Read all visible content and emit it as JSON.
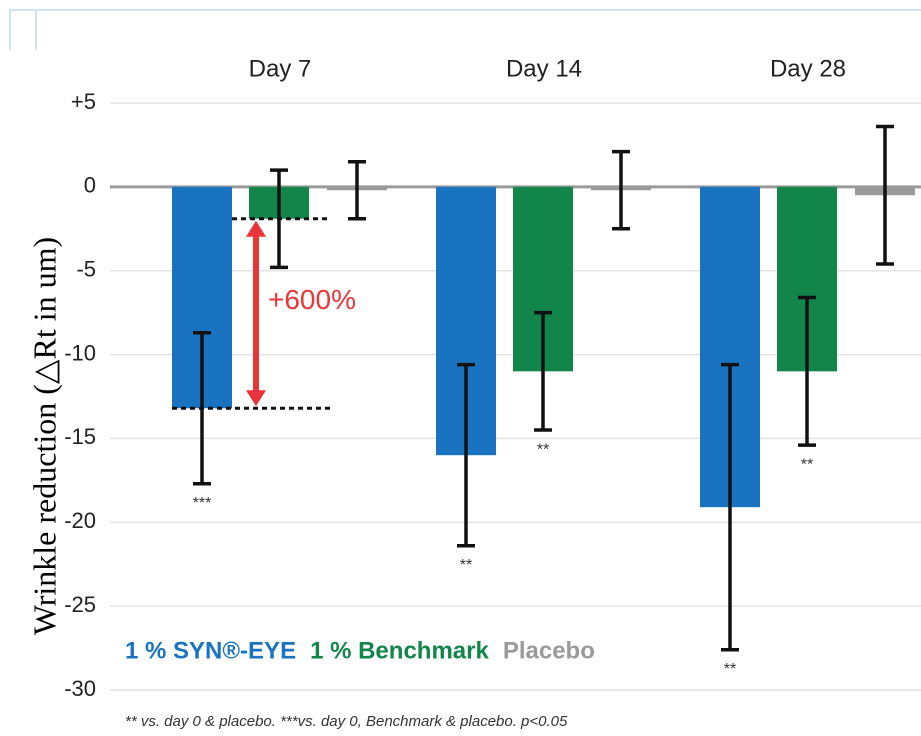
{
  "chart_data": {
    "type": "bar",
    "y_label": "Wrinkle reduction (△Rt in um)",
    "categories": [
      "Day 7",
      "Day 14",
      "Day 28"
    ],
    "series": [
      {
        "name": "1 % SYN®-EYE",
        "color": "#1a73c0",
        "values": [
          -13.2,
          -16.0,
          -19.1
        ],
        "errors": [
          4.5,
          5.4,
          8.5
        ],
        "significance": [
          "***",
          "**",
          "**"
        ]
      },
      {
        "name": "1 % Benchmark",
        "color": "#12854a",
        "values": [
          -1.9,
          -11.0,
          -11.0
        ],
        "errors": [
          2.9,
          3.5,
          4.4
        ],
        "significance": [
          null,
          "**",
          "**"
        ]
      },
      {
        "name": "Placebo",
        "color": "#9a9a9a",
        "values": [
          -0.2,
          -0.2,
          -0.5
        ],
        "errors": [
          1.7,
          2.3,
          4.1
        ],
        "significance": [
          null,
          null,
          null
        ]
      }
    ],
    "ylim": [
      5,
      -30
    ],
    "yticks": [
      {
        "value": 5,
        "label": "+5"
      },
      0,
      -5,
      -10,
      -15,
      -20,
      -25,
      -30
    ],
    "grid": true,
    "legend": "lower left",
    "annotation": "+600%",
    "footnote": "** vs. day 0 & placebo.  ***vs. day 0, Benchmark & placebo.  p<0.05"
  }
}
